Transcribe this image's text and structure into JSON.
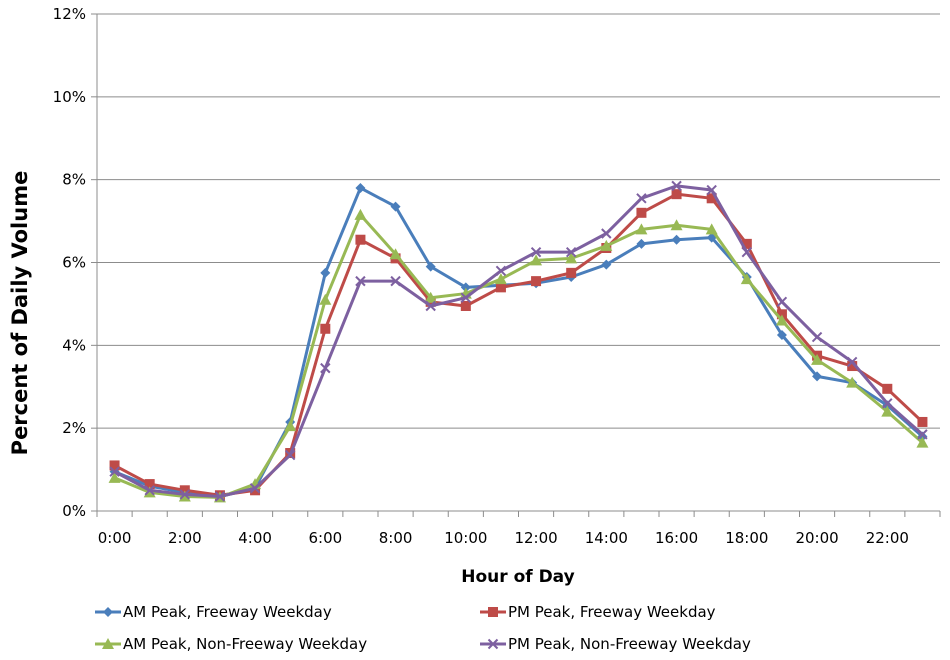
{
  "chart_data": {
    "type": "line",
    "title": "",
    "xlabel": "Hour of Day",
    "ylabel": "Percent of Daily Volume",
    "ylim": [
      0,
      12
    ],
    "yticks": [
      "0%",
      "2%",
      "4%",
      "6%",
      "8%",
      "10%",
      "12%"
    ],
    "y_tick_values": [
      0,
      2,
      4,
      6,
      8,
      10,
      12
    ],
    "x": [
      "0:00",
      "1:00",
      "2:00",
      "3:00",
      "4:00",
      "5:00",
      "6:00",
      "7:00",
      "8:00",
      "9:00",
      "10:00",
      "11:00",
      "12:00",
      "13:00",
      "14:00",
      "15:00",
      "16:00",
      "17:00",
      "18:00",
      "19:00",
      "20:00",
      "21:00",
      "22:00",
      "23:00"
    ],
    "xticks": [
      "0:00",
      "2:00",
      "4:00",
      "6:00",
      "8:00",
      "10:00",
      "12:00",
      "14:00",
      "16:00",
      "18:00",
      "20:00",
      "22:00"
    ],
    "grid": "horizontal",
    "legend_position": "bottom",
    "series": [
      {
        "name": "AM Peak, Freeway Weekday",
        "color": "#4a7ebb",
        "marker": "diamond",
        "values": [
          0.95,
          0.6,
          0.45,
          0.35,
          0.55,
          2.15,
          5.75,
          7.8,
          7.35,
          5.9,
          5.4,
          5.45,
          5.5,
          5.65,
          5.95,
          6.45,
          6.55,
          6.6,
          5.65,
          4.25,
          3.25,
          3.1,
          2.55,
          1.8
        ]
      },
      {
        "name": "PM Peak, Freeway Weekday",
        "color": "#be4b48",
        "marker": "square",
        "values": [
          1.1,
          0.65,
          0.5,
          0.38,
          0.5,
          1.4,
          4.4,
          6.55,
          6.1,
          5.05,
          4.95,
          5.4,
          5.55,
          5.75,
          6.35,
          7.2,
          7.65,
          7.55,
          6.45,
          4.75,
          3.75,
          3.5,
          2.95,
          2.15
        ]
      },
      {
        "name": "AM Peak, Non-Freeway Weekday",
        "color": "#98b954",
        "marker": "triangle",
        "values": [
          0.8,
          0.45,
          0.35,
          0.33,
          0.65,
          2.05,
          5.1,
          7.15,
          6.2,
          5.15,
          5.25,
          5.6,
          6.05,
          6.1,
          6.4,
          6.8,
          6.9,
          6.8,
          5.6,
          4.6,
          3.65,
          3.1,
          2.4,
          1.65
        ]
      },
      {
        "name": "PM Peak, Non-Freeway Weekday",
        "color": "#7d60a0",
        "marker": "x",
        "values": [
          0.95,
          0.5,
          0.4,
          0.35,
          0.55,
          1.35,
          3.45,
          5.55,
          5.55,
          4.95,
          5.15,
          5.8,
          6.25,
          6.25,
          6.7,
          7.55,
          7.85,
          7.75,
          6.25,
          5.05,
          4.2,
          3.6,
          2.6,
          1.85
        ]
      }
    ]
  }
}
